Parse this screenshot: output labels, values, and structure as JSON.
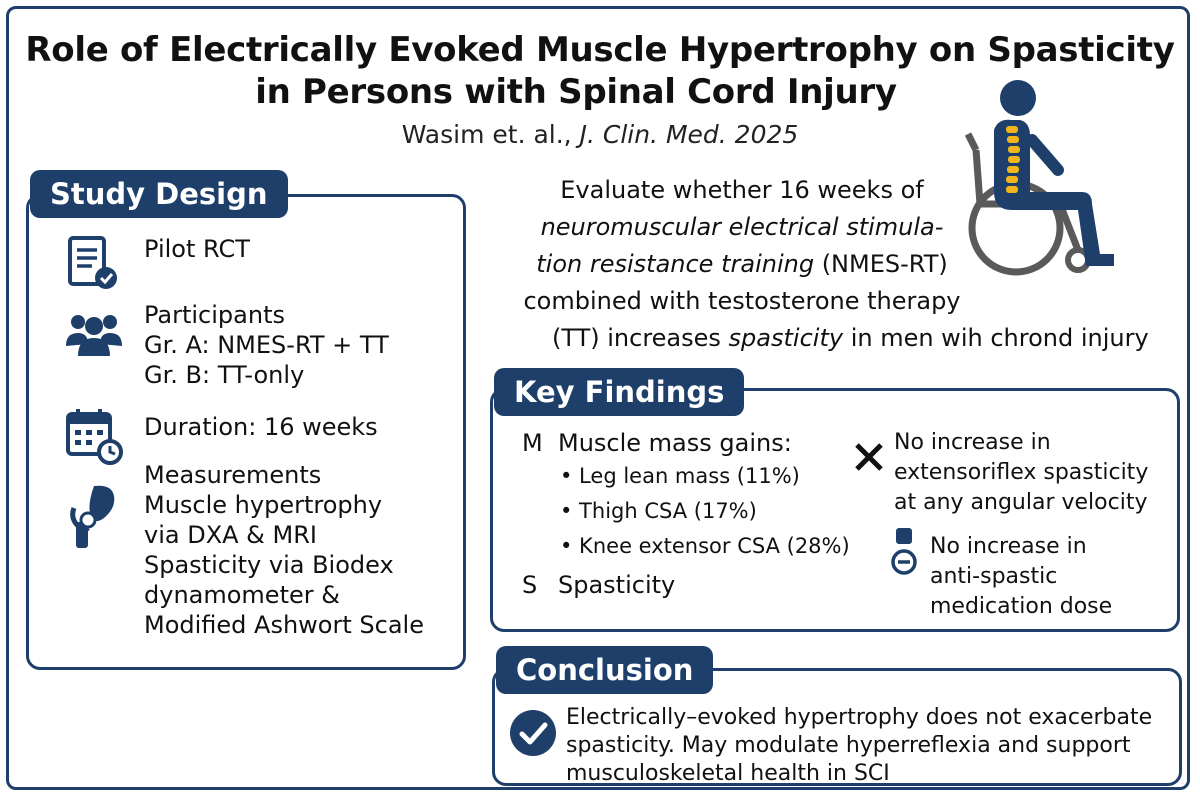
{
  "title": {
    "line1": "Role of Electrically Evoked Muscle Hypertrophy on Spasticity",
    "line2": "in Persons with Spinal Cord Injury"
  },
  "citation": {
    "authors": "Wasim et. al., ",
    "journal": "J. Clin. Med. 2025"
  },
  "study_design": {
    "heading": "Study Design",
    "items": [
      {
        "icon": "document-check-icon",
        "lines": [
          "Pilot RCT"
        ]
      },
      {
        "icon": "participants-icon",
        "lines": [
          "Participants",
          "Gr. A: NMES-RT + TT",
          "Gr. B: TT-only"
        ]
      },
      {
        "icon": "calendar-clock-icon",
        "lines": [
          "Duration: 16 weeks"
        ]
      },
      {
        "icon": "muscle-knee-icon",
        "lines": [
          "Measurements",
          "Muscle hypertrophy",
          "via DXA & MRI",
          "Spasticity via Biodex",
          "dynamometer &",
          "Modified Ashwort Scale"
        ]
      }
    ]
  },
  "objective": {
    "l1": "Evaluate whether 16 weeks of",
    "l2": "neuromuscular electrical stimula-",
    "l3_it": "tion resistance training",
    "l3_rest": " (NMES-RT)",
    "l4": "combined with testosterone therapy",
    "l5_a": "(TT) increases ",
    "l5_it": "spasticity",
    "l5_b": " in men wih chrond injury"
  },
  "key_findings": {
    "heading": "Key Findings",
    "muscle_marker": "M",
    "muscle_title": "Muscle mass gains:",
    "muscle_bullets": [
      "• Leg lean mass (11%)",
      "• Thigh CSA (17%)",
      "• Knee extensor CSA (28%)"
    ],
    "spasticity_marker": "S",
    "spasticity_title": "Spasticity",
    "finding1": [
      "No increase in",
      "extensoriflex spasticity",
      "at any angular velocity"
    ],
    "finding2": [
      "No increase in",
      "anti-spastic",
      "medication dose"
    ]
  },
  "conclusion": {
    "heading": "Conclusion",
    "text": "Electrically–evoked hypertrophy does not exacerbate spasticity. May modulate hyperreflexia and support musculoskeletal health in SCI"
  },
  "colors": {
    "navy": "#1f3f6b",
    "spine_yellow": "#f2b51c",
    "wheelchair_gray": "#5a5a5a"
  }
}
